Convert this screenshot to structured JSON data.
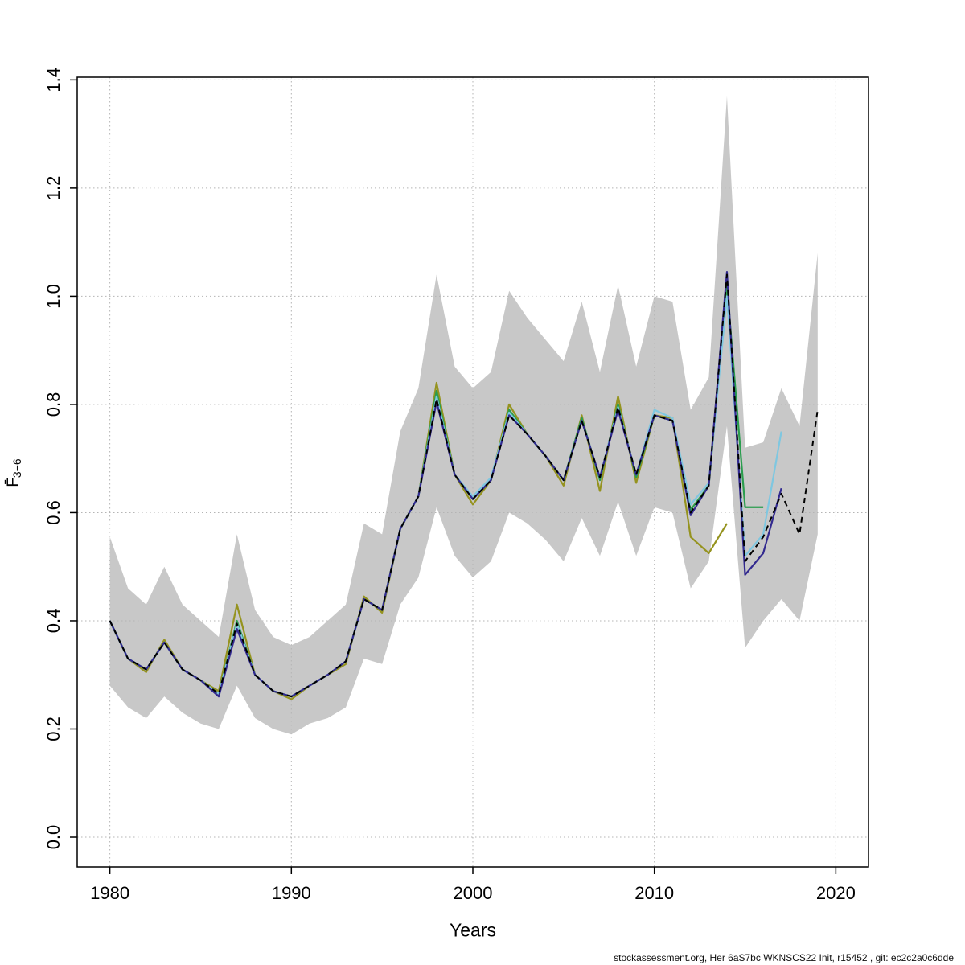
{
  "chart_data": {
    "type": "line",
    "title": "",
    "xlabel": "Years",
    "ylabel_main": "F̄",
    "ylabel_sub": "3−6",
    "xlim": [
      1978.2,
      2021.8
    ],
    "ylim": [
      -0.055,
      1.405
    ],
    "xticks": [
      1980,
      1990,
      2000,
      2010,
      2020
    ],
    "yticks": [
      "0.0",
      "0.2",
      "0.4",
      "0.6",
      "0.8",
      "1.0",
      "1.2",
      "1.4"
    ],
    "grid": true,
    "grid_color": "#b4b4b4",
    "legend": "none",
    "band": {
      "label": "confidence-band",
      "color": "#c8c8c8",
      "x": [
        1980,
        1981,
        1982,
        1983,
        1984,
        1985,
        1986,
        1987,
        1988,
        1989,
        1990,
        1991,
        1992,
        1993,
        1994,
        1995,
        1996,
        1997,
        1998,
        1999,
        2000,
        2001,
        2002,
        2003,
        2004,
        2005,
        2006,
        2007,
        2008,
        2009,
        2010,
        2011,
        2012,
        2013,
        2014,
        2015,
        2016,
        2017,
        2018,
        2019
      ],
      "lower": [
        0.28,
        0.24,
        0.22,
        0.26,
        0.23,
        0.21,
        0.2,
        0.28,
        0.22,
        0.2,
        0.19,
        0.21,
        0.22,
        0.24,
        0.33,
        0.32,
        0.43,
        0.48,
        0.61,
        0.52,
        0.48,
        0.51,
        0.6,
        0.58,
        0.55,
        0.51,
        0.59,
        0.52,
        0.62,
        0.52,
        0.61,
        0.6,
        0.46,
        0.51,
        0.76,
        0.35,
        0.4,
        0.44,
        0.4,
        0.56
      ],
      "upper": [
        0.555,
        0.46,
        0.43,
        0.5,
        0.43,
        0.4,
        0.37,
        0.56,
        0.42,
        0.37,
        0.355,
        0.37,
        0.4,
        0.43,
        0.58,
        0.56,
        0.75,
        0.83,
        1.04,
        0.87,
        0.83,
        0.86,
        1.01,
        0.96,
        0.92,
        0.88,
        0.99,
        0.86,
        1.02,
        0.87,
        1.0,
        0.99,
        0.79,
        0.85,
        1.37,
        0.72,
        0.73,
        0.83,
        0.76,
        1.08
      ]
    },
    "series": [
      {
        "name": "fbar-line-olive-peel",
        "color": "#95931f",
        "dash": "",
        "width": 2.2,
        "x": [
          1980,
          1981,
          1982,
          1983,
          1984,
          1985,
          1986,
          1987,
          1988,
          1989,
          1990,
          1991,
          1992,
          1993,
          1994,
          1995,
          1996,
          1997,
          1998,
          1999,
          2000,
          2001,
          2002,
          2003,
          2004,
          2005,
          2006,
          2007,
          2008,
          2009,
          2010,
          2011,
          2012,
          2013,
          2014
        ],
        "values": [
          0.4,
          0.33,
          0.305,
          0.365,
          0.31,
          0.29,
          0.27,
          0.43,
          0.3,
          0.27,
          0.255,
          0.28,
          0.3,
          0.32,
          0.445,
          0.415,
          0.57,
          0.63,
          0.84,
          0.67,
          0.615,
          0.66,
          0.8,
          0.745,
          0.705,
          0.65,
          0.78,
          0.64,
          0.815,
          0.655,
          0.78,
          0.775,
          0.555,
          0.525,
          0.58
        ]
      },
      {
        "name": "fbar-line-green-peel",
        "color": "#2a9d4e",
        "dash": "",
        "width": 2.2,
        "x": [
          1980,
          1981,
          1982,
          1983,
          1984,
          1985,
          1986,
          1987,
          1988,
          1989,
          1990,
          1991,
          1992,
          1993,
          1994,
          1995,
          1996,
          1997,
          1998,
          1999,
          2000,
          2001,
          2002,
          2003,
          2004,
          2005,
          2006,
          2007,
          2008,
          2009,
          2010,
          2011,
          2012,
          2013,
          2014,
          2015,
          2016
        ],
        "values": [
          0.4,
          0.33,
          0.31,
          0.36,
          0.31,
          0.29,
          0.265,
          0.4,
          0.3,
          0.27,
          0.26,
          0.28,
          0.3,
          0.325,
          0.44,
          0.42,
          0.57,
          0.63,
          0.825,
          0.67,
          0.625,
          0.66,
          0.79,
          0.745,
          0.705,
          0.66,
          0.775,
          0.66,
          0.8,
          0.665,
          0.78,
          0.77,
          0.605,
          0.65,
          1.02,
          0.61,
          0.61
        ]
      },
      {
        "name": "fbar-line-lightblue-peel",
        "color": "#7fc7e0",
        "dash": "",
        "width": 2.2,
        "x": [
          1980,
          1981,
          1982,
          1983,
          1984,
          1985,
          1986,
          1987,
          1988,
          1989,
          1990,
          1991,
          1992,
          1993,
          1994,
          1995,
          1996,
          1997,
          1998,
          1999,
          2000,
          2001,
          2002,
          2003,
          2004,
          2005,
          2006,
          2007,
          2008,
          2009,
          2010,
          2011,
          2012,
          2013,
          2014,
          2015,
          2016,
          2017
        ],
        "values": [
          0.4,
          0.33,
          0.31,
          0.36,
          0.31,
          0.29,
          0.265,
          0.395,
          0.3,
          0.27,
          0.26,
          0.28,
          0.3,
          0.325,
          0.44,
          0.42,
          0.57,
          0.63,
          0.815,
          0.67,
          0.63,
          0.665,
          0.785,
          0.745,
          0.705,
          0.66,
          0.77,
          0.665,
          0.795,
          0.67,
          0.79,
          0.775,
          0.615,
          0.655,
          1.0,
          0.52,
          0.56,
          0.75
        ]
      },
      {
        "name": "fbar-line-darkblue-peel",
        "color": "#32298f",
        "dash": "",
        "width": 2.2,
        "x": [
          1980,
          1981,
          1982,
          1983,
          1984,
          1985,
          1986,
          1987,
          1988,
          1989,
          1990,
          1991,
          1992,
          1993,
          1994,
          1995,
          1996,
          1997,
          1998,
          1999,
          2000,
          2001,
          2002,
          2003,
          2004,
          2005,
          2006,
          2007,
          2008,
          2009,
          2010,
          2011,
          2012,
          2013,
          2014,
          2015,
          2016,
          2017
        ],
        "values": [
          0.4,
          0.33,
          0.31,
          0.36,
          0.31,
          0.29,
          0.26,
          0.385,
          0.3,
          0.27,
          0.26,
          0.28,
          0.3,
          0.325,
          0.44,
          0.42,
          0.57,
          0.63,
          0.805,
          0.67,
          0.625,
          0.66,
          0.78,
          0.745,
          0.705,
          0.66,
          0.77,
          0.665,
          0.79,
          0.67,
          0.78,
          0.77,
          0.595,
          0.65,
          1.045,
          0.485,
          0.525,
          0.645
        ]
      },
      {
        "name": "fbar-line-base-dashed",
        "color": "#000000",
        "dash": "7 5",
        "width": 2,
        "x": [
          1980,
          1981,
          1982,
          1983,
          1984,
          1985,
          1986,
          1987,
          1988,
          1989,
          1990,
          1991,
          1992,
          1993,
          1994,
          1995,
          1996,
          1997,
          1998,
          1999,
          2000,
          2001,
          2002,
          2003,
          2004,
          2005,
          2006,
          2007,
          2008,
          2009,
          2010,
          2011,
          2012,
          2013,
          2014,
          2015,
          2016,
          2017,
          2018,
          2019
        ],
        "values": [
          0.4,
          0.33,
          0.31,
          0.36,
          0.31,
          0.29,
          0.265,
          0.395,
          0.3,
          0.27,
          0.26,
          0.28,
          0.3,
          0.325,
          0.44,
          0.42,
          0.57,
          0.63,
          0.81,
          0.67,
          0.625,
          0.66,
          0.78,
          0.745,
          0.705,
          0.66,
          0.77,
          0.665,
          0.795,
          0.67,
          0.78,
          0.77,
          0.6,
          0.65,
          1.04,
          0.51,
          0.555,
          0.635,
          0.56,
          0.79
        ]
      }
    ]
  },
  "footer": {
    "text": "stockassessment.org, Her 6aS7bc WKNSCS22 Init, r15452 , git: ec2c2a0c6dde"
  }
}
